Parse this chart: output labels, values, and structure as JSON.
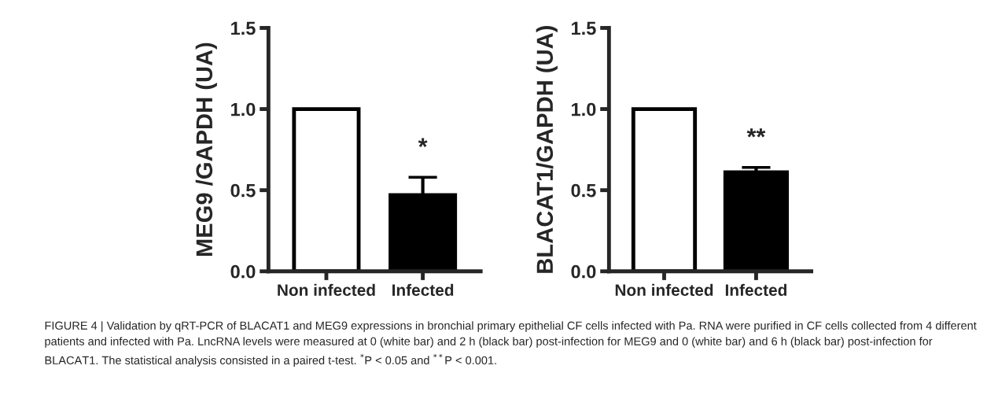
{
  "chart_data": [
    {
      "type": "bar",
      "ylabel": "MEG9 /GAPDH (UA)",
      "categories": [
        "Non infected",
        "Infected"
      ],
      "values": [
        1.0,
        0.47
      ],
      "errors": [
        null,
        0.11
      ],
      "colors": [
        "#ffffff",
        "#000000"
      ],
      "ylim": [
        0,
        1.5
      ],
      "yticks": [
        {
          "value": 0,
          "label": "0.0"
        },
        {
          "value": 0.5,
          "label": "0.5"
        },
        {
          "value": 1.0,
          "label": "1.0"
        },
        {
          "value": 1.5,
          "label": "1.5"
        }
      ],
      "grid": false,
      "legend": false,
      "annotations": [
        "*",
        "FIGURE 4 | Validation by qRT-PCR of BLACAT1 and MEG9 expressions in bronchial primary epithelial CF cells infected with Pa. RNA were purified in CF cells collected from 4 different patients and infected with Pa. LncRNA levels were measured at 0 (white bar) and 2 h (black bar) post-infection for MEG9 and 0 (white bar) and 6 h (black bar) post-infection for BLACAT1. The statistical analysis consisted in a paired t-test. $^{*}$P < 0.05 and $^{**}$P < 0.001."
      ]
    },
    {
      "type": "bar",
      "ylabel": "BLACAT1/GAPDH (UA)",
      "categories": [
        "Non infected",
        "Infected"
      ],
      "values": [
        1.0,
        0.61
      ],
      "errors": [
        null,
        0.03
      ],
      "colors": [
        "#ffffff",
        "#000000"
      ],
      "ylim": [
        0,
        1.5
      ],
      "yticks": [
        {
          "value": 0,
          "label": "0.0"
        },
        {
          "value": 0.5,
          "label": "0.5"
        },
        {
          "value": 1.0,
          "label": "1.0"
        },
        {
          "value": 1.5,
          "label": "1.5"
        }
      ],
      "grid": false,
      "legend": false,
      "annotations": [
        "**"
      ]
    }
  ]
}
